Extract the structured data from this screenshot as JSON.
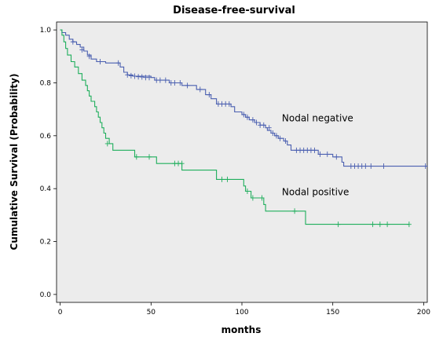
{
  "chart_data": {
    "type": "line",
    "title": "Disease-free-survival",
    "xlabel": "months",
    "ylabel": "Cumulative Survival (Probability)",
    "xlim": [
      -2,
      202
    ],
    "ylim": [
      -0.03,
      1.03
    ],
    "xticks": [
      0,
      50,
      100,
      150,
      200
    ],
    "yticks": [
      0.0,
      0.2,
      0.4,
      0.6,
      0.8,
      1.0
    ],
    "ytick_labels": [
      "0.0",
      "0.2",
      "0.4",
      "0.6",
      "0.8",
      "1.0"
    ],
    "plot_background": "#ececec",
    "grid": false,
    "legend": "none",
    "annotations": [
      {
        "text": "Nodal negative",
        "x": 122,
        "y": 0.655
      },
      {
        "text": "Nodal positive",
        "x": 122,
        "y": 0.375
      }
    ],
    "series": [
      {
        "name": "Nodal negative",
        "color": "#4a5fb0",
        "steps": [
          [
            0,
            1.0
          ],
          [
            1,
            0.99
          ],
          [
            3,
            0.98
          ],
          [
            5,
            0.965
          ],
          [
            7,
            0.955
          ],
          [
            9,
            0.945
          ],
          [
            11,
            0.935
          ],
          [
            13,
            0.92
          ],
          [
            15,
            0.905
          ],
          [
            17,
            0.89
          ],
          [
            20,
            0.88
          ],
          [
            25,
            0.875
          ],
          [
            33,
            0.86
          ],
          [
            35,
            0.84
          ],
          [
            37,
            0.83
          ],
          [
            40,
            0.825
          ],
          [
            50,
            0.82
          ],
          [
            52,
            0.81
          ],
          [
            60,
            0.8
          ],
          [
            67,
            0.79
          ],
          [
            75,
            0.775
          ],
          [
            80,
            0.755
          ],
          [
            83,
            0.74
          ],
          [
            86,
            0.72
          ],
          [
            94,
            0.71
          ],
          [
            96,
            0.69
          ],
          [
            100,
            0.68
          ],
          [
            102,
            0.67
          ],
          [
            104,
            0.66
          ],
          [
            107,
            0.65
          ],
          [
            110,
            0.64
          ],
          [
            113,
            0.63
          ],
          [
            114,
            0.62
          ],
          [
            116,
            0.61
          ],
          [
            118,
            0.6
          ],
          [
            120,
            0.59
          ],
          [
            123,
            0.58
          ],
          [
            125,
            0.565
          ],
          [
            127,
            0.545
          ],
          [
            142,
            0.53
          ],
          [
            150,
            0.52
          ],
          [
            155,
            0.5
          ],
          [
            156,
            0.485
          ],
          [
            202,
            0.485
          ]
        ],
        "censored": [
          [
            7,
            0.955
          ],
          [
            12,
            0.925
          ],
          [
            16,
            0.9
          ],
          [
            22,
            0.88
          ],
          [
            32,
            0.875
          ],
          [
            37,
            0.83
          ],
          [
            39,
            0.827
          ],
          [
            41,
            0.825
          ],
          [
            43,
            0.823
          ],
          [
            45,
            0.822
          ],
          [
            47,
            0.82
          ],
          [
            49,
            0.82
          ],
          [
            53,
            0.81
          ],
          [
            55,
            0.81
          ],
          [
            58,
            0.81
          ],
          [
            61,
            0.8
          ],
          [
            63,
            0.8
          ],
          [
            66,
            0.8
          ],
          [
            70,
            0.79
          ],
          [
            77,
            0.775
          ],
          [
            82,
            0.755
          ],
          [
            87,
            0.72
          ],
          [
            89,
            0.72
          ],
          [
            91,
            0.72
          ],
          [
            93,
            0.72
          ],
          [
            101,
            0.68
          ],
          [
            103,
            0.67
          ],
          [
            106,
            0.66
          ],
          [
            108,
            0.65
          ],
          [
            110,
            0.64
          ],
          [
            112,
            0.64
          ],
          [
            115,
            0.63
          ],
          [
            117,
            0.61
          ],
          [
            119,
            0.6
          ],
          [
            121,
            0.59
          ],
          [
            124,
            0.58
          ],
          [
            130,
            0.545
          ],
          [
            132,
            0.545
          ],
          [
            134,
            0.545
          ],
          [
            136,
            0.545
          ],
          [
            138,
            0.545
          ],
          [
            140,
            0.545
          ],
          [
            143,
            0.53
          ],
          [
            147,
            0.53
          ],
          [
            152,
            0.52
          ],
          [
            160,
            0.485
          ],
          [
            162,
            0.485
          ],
          [
            164,
            0.485
          ],
          [
            166,
            0.485
          ],
          [
            168,
            0.485
          ],
          [
            171,
            0.485
          ],
          [
            178,
            0.485
          ],
          [
            201,
            0.485
          ]
        ]
      },
      {
        "name": "Nodal positive",
        "color": "#1fae5c",
        "steps": [
          [
            0,
            1.0
          ],
          [
            1,
            0.98
          ],
          [
            2,
            0.955
          ],
          [
            3,
            0.93
          ],
          [
            4,
            0.905
          ],
          [
            6,
            0.88
          ],
          [
            8,
            0.86
          ],
          [
            10,
            0.835
          ],
          [
            12,
            0.81
          ],
          [
            14,
            0.79
          ],
          [
            15,
            0.77
          ],
          [
            16,
            0.75
          ],
          [
            17,
            0.73
          ],
          [
            19,
            0.71
          ],
          [
            20,
            0.69
          ],
          [
            21,
            0.67
          ],
          [
            22,
            0.65
          ],
          [
            23,
            0.63
          ],
          [
            24,
            0.61
          ],
          [
            25,
            0.59
          ],
          [
            27,
            0.57
          ],
          [
            29,
            0.545
          ],
          [
            41,
            0.52
          ],
          [
            53,
            0.495
          ],
          [
            67,
            0.47
          ],
          [
            86,
            0.435
          ],
          [
            101,
            0.41
          ],
          [
            102,
            0.39
          ],
          [
            105,
            0.365
          ],
          [
            112,
            0.34
          ],
          [
            113,
            0.315
          ],
          [
            135,
            0.265
          ],
          [
            192,
            0.265
          ]
        ],
        "censored": [
          [
            26,
            0.57
          ],
          [
            42,
            0.52
          ],
          [
            49,
            0.52
          ],
          [
            63,
            0.495
          ],
          [
            65,
            0.495
          ],
          [
            67,
            0.495
          ],
          [
            89,
            0.435
          ],
          [
            92,
            0.435
          ],
          [
            103,
            0.39
          ],
          [
            106,
            0.365
          ],
          [
            111,
            0.365
          ],
          [
            129,
            0.315
          ],
          [
            153,
            0.265
          ],
          [
            172,
            0.265
          ],
          [
            176,
            0.265
          ],
          [
            180,
            0.265
          ],
          [
            192,
            0.265
          ]
        ]
      }
    ]
  }
}
